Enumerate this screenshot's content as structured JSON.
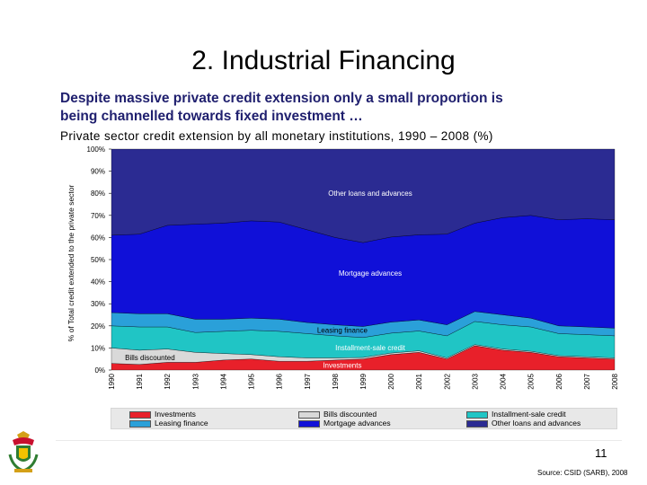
{
  "slide": {
    "title": "2. Industrial Financing",
    "subtitle_line1": "Despite massive private credit extension only a small proportion is",
    "subtitle_line2": "being channelled towards fixed investment …",
    "chart_caption": "Private sector credit extension by all monetary institutions, 1990 – 2008 (%)",
    "page_number": "11",
    "source": "Source: CSID (SARB), 2008",
    "crest_icon": "coat-of-arms-icon"
  },
  "chart_data": {
    "type": "area",
    "stacked": true,
    "title": "Private sector credit extension by all monetary institutions, 1990 – 2008 (%)",
    "xlabel": "",
    "ylabel": "% of Total credit extended to the private sector",
    "ylim": [
      0,
      100
    ],
    "yticks": [
      "0%",
      "10%",
      "20%",
      "30%",
      "40%",
      "50%",
      "60%",
      "70%",
      "80%",
      "90%",
      "100%"
    ],
    "categories": [
      "1990",
      "1991",
      "1992",
      "1993",
      "1994",
      "1995",
      "1996",
      "1997",
      "1998",
      "1999",
      "2000",
      "2001",
      "2002",
      "2003",
      "2004",
      "2005",
      "2006",
      "2007",
      "2008"
    ],
    "series": [
      {
        "name": "Investments",
        "color": "#e8202a",
        "values": [
          3,
          2.5,
          3.5,
          3.5,
          4.5,
          5,
          4,
          4,
          4.5,
          5,
          7,
          8,
          5,
          11,
          9,
          8,
          6,
          5.5,
          5
        ]
      },
      {
        "name": "Bills discounted",
        "color": "#d9d9d9",
        "values": [
          7,
          6.5,
          6,
          4.5,
          3,
          2,
          2,
          1.5,
          1,
          0.7,
          0.7,
          0.7,
          0.5,
          0.5,
          0.5,
          0.5,
          0.5,
          0.5,
          0.5
        ]
      },
      {
        "name": "Installment-sale credit",
        "color": "#20c5c5",
        "values": [
          10,
          10.5,
          10,
          9,
          10,
          11,
          11.5,
          11,
          10,
          9,
          9,
          9,
          10,
          10.5,
          11,
          11,
          10,
          10,
          10
        ]
      },
      {
        "name": "Leasing finance",
        "color": "#2aa0d9",
        "values": [
          6,
          6,
          6,
          6,
          5.5,
          5.5,
          5.5,
          5,
          5,
          5,
          5,
          5,
          5,
          4.5,
          4.5,
          4,
          3.5,
          3.5,
          3.5
        ]
      },
      {
        "name": "Mortgage advances",
        "color": "#1010d8",
        "values": [
          35,
          36,
          40,
          43,
          43.5,
          44,
          44,
          42,
          39.5,
          38,
          38.5,
          38.5,
          41,
          40,
          44,
          46.5,
          48,
          49,
          49
        ]
      },
      {
        "name": "Other loans and advances",
        "color": "#2b2b92",
        "values": [
          39,
          38.5,
          34.5,
          34,
          33.5,
          32.5,
          33,
          36.5,
          40,
          42.3,
          39.8,
          38.8,
          38.5,
          33.5,
          31,
          30,
          32,
          31.5,
          32
        ]
      }
    ],
    "annotations": [
      "Other loans and advances",
      "Mortgage advances",
      "Leasing finance",
      "Installment-sale credit",
      "Bills discounted",
      "Investments"
    ],
    "legend": {
      "placement": "bottom",
      "entries": [
        "Investments",
        "Bills discounted",
        "Installment-sale credit",
        "Leasing finance",
        "Mortgage advances",
        "Other loans and advances"
      ]
    }
  }
}
